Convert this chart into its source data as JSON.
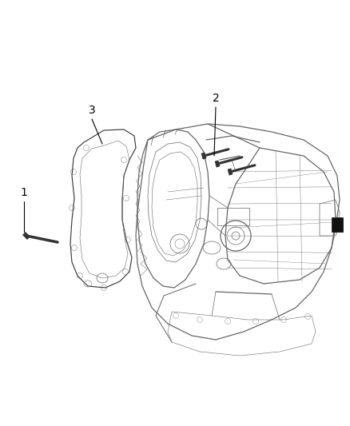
{
  "bg_color": "#ffffff",
  "fig_width": 4.38,
  "fig_height": 5.33,
  "dpi": 100,
  "label_1": "1",
  "label_2": "2",
  "label_3": "3",
  "text_color": "#000000",
  "line_color": "#000000",
  "label_fontsize": 10,
  "lc": "#666666",
  "lc_dark": "#333333",
  "lw_main": 0.9,
  "lw_detail": 0.5
}
